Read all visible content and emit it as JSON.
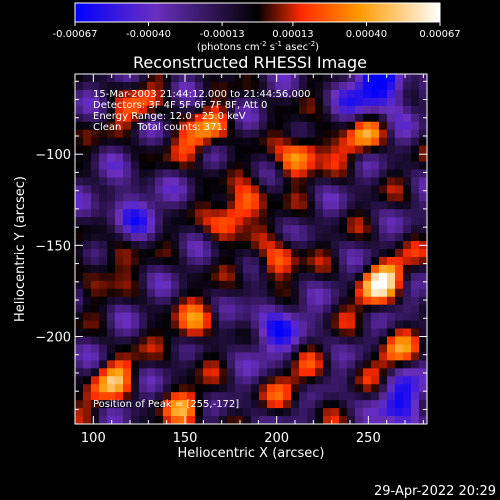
{
  "chart_data": {
    "type": "heatmap",
    "title": "Reconstructed RHESSI Image",
    "xlabel": "Heliocentric X (arcsec)",
    "ylabel": "Heliocentric Y (arcsec)",
    "xlim": [
      90,
      282
    ],
    "ylim": [
      -248,
      -56
    ],
    "x_ticks": [
      100,
      150,
      200,
      250
    ],
    "y_ticks": [
      -100,
      -150,
      -200
    ],
    "colorbar": {
      "min": -0.00067,
      "max": 0.00067,
      "ticks": [
        -0.00067,
        -0.0004,
        -0.00013,
        0.00013,
        0.0004,
        0.00067
      ],
      "tick_labels": [
        "-0.00067",
        "-0.00040",
        "-0.00013",
        "0.00013",
        "0.00040",
        "0.00067"
      ],
      "unit_text": "(photons cm",
      "unit_sup1": "-2",
      "unit_mid": " s",
      "unit_sup2": "-1",
      "unit_mid2": " asec",
      "unit_sup3": "-2",
      "unit_end": ")",
      "colors": [
        "#0000ff",
        "#6a2fc0",
        "#000000",
        "#ff2a00",
        "#ff9a00",
        "#ffffff"
      ]
    },
    "annotations": [
      "15-Mar-2003 21:44:12.000 to 21:44:56.000",
      "Detectors: 3F 4F 5F 6F 7F 8F, Att 0",
      "Energy Range: 12.0 - 25.0 keV",
      "Clean     Total counts: 371.",
      "Position of Peak = [255,-172]"
    ],
    "peak": {
      "x": 255,
      "y": -172
    },
    "peaks": [
      {
        "x": 257,
        "y": -170,
        "v": 0.00067
      },
      {
        "x": 178,
        "y": -132,
        "v": 0.00058
      },
      {
        "x": 160,
        "y": -90,
        "v": 0.00048
      },
      {
        "x": 213,
        "y": -100,
        "v": 0.00052
      },
      {
        "x": 248,
        "y": -90,
        "v": 0.00045
      },
      {
        "x": 200,
        "y": -160,
        "v": 0.0004
      },
      {
        "x": 110,
        "y": -225,
        "v": 0.00045
      },
      {
        "x": 108,
        "y": -160,
        "v": 0.0003
      },
      {
        "x": 155,
        "y": -193,
        "v": 0.0004
      },
      {
        "x": 150,
        "y": -240,
        "v": 0.00038
      },
      {
        "x": 263,
        "y": -210,
        "v": 0.00038
      },
      {
        "x": 210,
        "y": -225,
        "v": 0.0003
      },
      {
        "x": 125,
        "y": -75,
        "v": 0.0003
      }
    ],
    "troughs": [
      {
        "x": 255,
        "y": -65,
        "v": -0.0006
      },
      {
        "x": 270,
        "y": -235,
        "v": -0.0004
      },
      {
        "x": 198,
        "y": -195,
        "v": -0.00035
      },
      {
        "x": 120,
        "y": -130,
        "v": -0.0003
      }
    ]
  },
  "footer": {
    "timestamp": "29-Apr-2022 20:29"
  }
}
